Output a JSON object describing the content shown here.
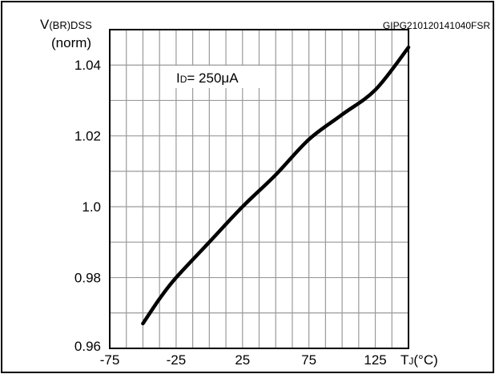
{
  "code_label": "GIPG210120141040FSR",
  "chart_data": {
    "type": "line",
    "title": "",
    "ylabel": {
      "line1": "V",
      "line1_sub": "(BR)DSS",
      "line2": "(norm)"
    },
    "xlabel": {
      "main": "T",
      "sub": "J",
      "unit": "(°C)"
    },
    "annotation": {
      "main": "I",
      "sub": "D",
      "value": "= 250μA"
    },
    "xlim": [
      -75,
      150
    ],
    "ylim": [
      0.96,
      1.05
    ],
    "x_tick_labels": [
      "-75",
      "-25",
      "25",
      "75",
      "125"
    ],
    "x_tick_values": [
      -75,
      -25,
      25,
      75,
      125
    ],
    "y_tick_labels": [
      "0.96",
      "0.98",
      "1.0",
      "1.02",
      "1.04"
    ],
    "y_tick_values": [
      0.96,
      0.98,
      1.0,
      1.02,
      1.04
    ],
    "grid": true,
    "series": [
      {
        "color": "#000000",
        "x": [
          -50,
          -37.5,
          -25,
          0,
          25,
          50,
          75,
          100,
          125,
          150
        ],
        "y": [
          0.967,
          0.974,
          0.98,
          0.99,
          1.0,
          1.009,
          1.019,
          1.026,
          1.033,
          1.045
        ]
      }
    ]
  }
}
